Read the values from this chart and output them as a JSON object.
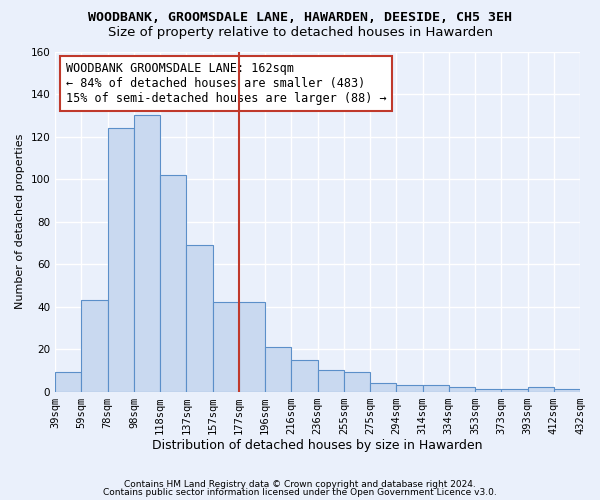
{
  "title": "WOODBANK, GROOMSDALE LANE, HAWARDEN, DEESIDE, CH5 3EH",
  "subtitle": "Size of property relative to detached houses in Hawarden",
  "xlabel": "Distribution of detached houses by size in Hawarden",
  "ylabel": "Number of detached properties",
  "footnote1": "Contains HM Land Registry data © Crown copyright and database right 2024.",
  "footnote2": "Contains public sector information licensed under the Open Government Licence v3.0.",
  "bin_labels": [
    "39sqm",
    "59sqm",
    "78sqm",
    "98sqm",
    "118sqm",
    "137sqm",
    "157sqm",
    "177sqm",
    "196sqm",
    "216sqm",
    "236sqm",
    "255sqm",
    "275sqm",
    "294sqm",
    "314sqm",
    "334sqm",
    "353sqm",
    "373sqm",
    "393sqm",
    "412sqm",
    "432sqm"
  ],
  "bar_heights": [
    9,
    43,
    124,
    130,
    102,
    69,
    42,
    42,
    21,
    15,
    10,
    9,
    4,
    3,
    3,
    2,
    1,
    1,
    2,
    1
  ],
  "bar_color": "#c9d9f0",
  "bar_edge_color": "#5b8fc9",
  "vline_position": 6.5,
  "vline_color": "#c0392b",
  "annotation_line1": "WOODBANK GROOMSDALE LANE: 162sqm",
  "annotation_line2": "← 84% of detached houses are smaller (483)",
  "annotation_line3": "15% of semi-detached houses are larger (88) →",
  "annotation_box_color": "#ffffff",
  "annotation_box_edge": "#c0392b",
  "ylim": [
    0,
    160
  ],
  "yticks": [
    0,
    20,
    40,
    60,
    80,
    100,
    120,
    140,
    160
  ],
  "bg_color": "#eaf0fb",
  "grid_color": "#ffffff",
  "title_fontsize": 9.5,
  "subtitle_fontsize": 9.5,
  "annotation_fontsize": 8.5,
  "ylabel_fontsize": 8,
  "xlabel_fontsize": 9,
  "tick_fontsize": 7.5
}
